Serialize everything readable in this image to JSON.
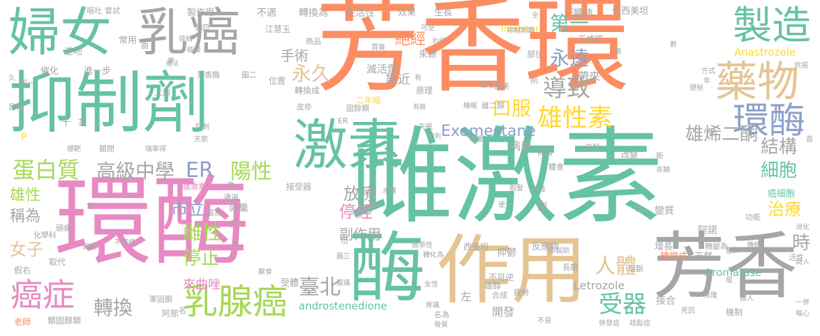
{
  "palette": {
    "orange": "#fc8d62",
    "green": "#66c2a5",
    "gray": "#a6a6a6",
    "pink": "#e78ac3",
    "tan": "#e5c494",
    "lime": "#a6d854",
    "blue": "#8da0cb",
    "yellow": "#ffd92f"
  },
  "words": {
    "w1": "芳香環",
    "w2": "抑制劑",
    "w3": "雌激素",
    "w4": "環酶",
    "w5": "酶",
    "w6": "作用",
    "w7": "芳香",
    "w8": "婦女",
    "w9": "乳癌",
    "w10": "激素",
    "w11": "藥物",
    "w12": "製造",
    "w13": "環酶",
    "w14": "乳腺癌",
    "w15": "癌症",
    "w16": "雄性素",
    "w17": "蛋白質",
    "w18": "高級中學",
    "w19": "ER",
    "w20": "陽性",
    "w21": "導致",
    "w22": "永久",
    "w23": "口服",
    "w24": "Exemestane",
    "w25": "雄烯二酮",
    "w26": "第一",
    "w27": "永遠",
    "w28": "結構",
    "w29": "細胞",
    "w30": "受器",
    "w31": "人體",
    "w32": "治療",
    "w33": "時",
    "w34": "停經",
    "w35": "放療",
    "w36": "停止",
    "w37": "雌性",
    "w38": "轉換",
    "w39": "臺北",
    "w40": "市立",
    "w41": "副作用",
    "w42": "來曲唑",
    "w43": "雄性",
    "w44": "稱為",
    "w45": "女子",
    "w46": "手術",
    "w47": "絕經",
    "w48": "靠近",
    "w49": "滅活劑",
    "w50": "Anastrozole",
    "w51": "Letrozole",
    "w52": "Aromatase",
    "w53": "androstenedione",
    "w54": "Inhibitor",
    "w55": "帶來",
    "w56": "潮熱",
    "w57": "病患",
    "w58": "癌細胞",
    "w59": "轉變成",
    "w60": "開發",
    "w61": "左",
    "w62": "接合",
    "w63": "阿諾",
    "w64": "增長",
    "w65": "變質",
    "w66": "天然",
    "w67": "反應物",
    "w68": "抑鬱",
    "w69": "西美坦",
    "w70": "副",
    "w71": "卵巢",
    "w72": "受體",
    "w73": "接受器",
    "w74": "雄激素",
    "w75": "不適",
    "w76": "轉換為",
    "w77": "失活性",
    "w78": "效果",
    "w79": "生長",
    "w80": "依西美坦",
    "w81": "製作用",
    "w82": "江慧玉",
    "w83": "王咸婷",
    "w84": "部位",
    "w85": "商品",
    "w86": "來源",
    "w87": "原理",
    "w88": "二年級",
    "w89": "雌二醇",
    "w90": "固醇類",
    "w91": "轉換成",
    "w92": "皮疹",
    "w93": "位置",
    "w94": "常用",
    "w95": "進一步",
    "w96": "催化",
    "w97": "逆地",
    "w98": "芳香酶",
    "w99": "圖二",
    "w100": "二酮",
    "w101": "目標",
    "w102": "圖一",
    "w103": "雄醇",
    "w104": "頭痛",
    "w105": "化學科",
    "w106": "取代",
    "w107": "假右",
    "w108": "老師",
    "w109": "類固醇類",
    "w110": "阿那",
    "w111": "睪固酮",
    "w112": "關閉",
    "w113": "最為",
    "w114": "通過",
    "w115": "抑制",
    "w116": "天歌",
    "w117": "瑞寧得",
    "w118": "嘔吐",
    "w119": "嘗試",
    "w120": "肝",
    "w121": "名為",
    "w122": "合成",
    "w123": "疲勞",
    "w124": "骨質",
    "w125": "疼痛",
    "w126": "不可逆",
    "w127": "機制",
    "w128": "死因",
    "w129": "國人",
    "w130": "功能",
    "w131": "活性",
    "w132": "消化",
    "w133": "傳統",
    "w134": "轉變為",
    "w135": "改變",
    "w136": "新",
    "w137": "非類",
    "w138": "體會",
    "w139": "抑製",
    "w140": "自殺",
    "w141": "長期",
    "w142": "阻斷",
    "w143": "下肢",
    "w144": "脫髮",
    "w145": "轉化為",
    "w146": "水腫",
    "w147": "不容緩",
    "w148": "腹痛",
    "w149": "眩暈",
    "w150": "供給",
    "w151": "圖四",
    "w152": "圖三",
    "w153": "久",
    "w154": "抑制劑類",
    "w155": "化療",
    "w156": "失眠",
    "w157": "便秘",
    "w158": "年",
    "w159": "數",
    "w160": "方式",
    "w161": "抗癌",
    "w162": "一併",
    "w163": "嘔心",
    "w164": "首",
    "w165": "併發症",
    "w166": "商人",
    "w167": "曲唑",
    "w168": "西美",
    "w169": "睡眠",
    "w170": "厭食",
    "w171": "標靶",
    "w172": "有",
    "w173": "弗隆",
    "w174": "P",
    "w175": "十",
    "w176": "芸",
    "w177": "身",
    "w178": "使",
    "w179": "全",
    "w180": "競爭性",
    "w181": "醫師",
    "w182": "女性",
    "w183": "不良",
    "w184": "抑製劑",
    "w185": "疏鬆症",
    "w186": "可逆",
    "w187": "買賣",
    "w188": "粉刺",
    "w189": "剤",
    "w190": "頭",
    "w191": "困擾",
    "w192": "晚",
    "w193": "曲",
    "w194": "痛",
    "w195": "常",
    "w196": "寮",
    "w197": "瘦",
    "w198": "有越",
    "w199": "粒徑",
    "w200": "名",
    "w201": "坦",
    "w202": "皮",
    "w203": "療法",
    "w204": "ER",
    "w205": "腫"
  }
}
